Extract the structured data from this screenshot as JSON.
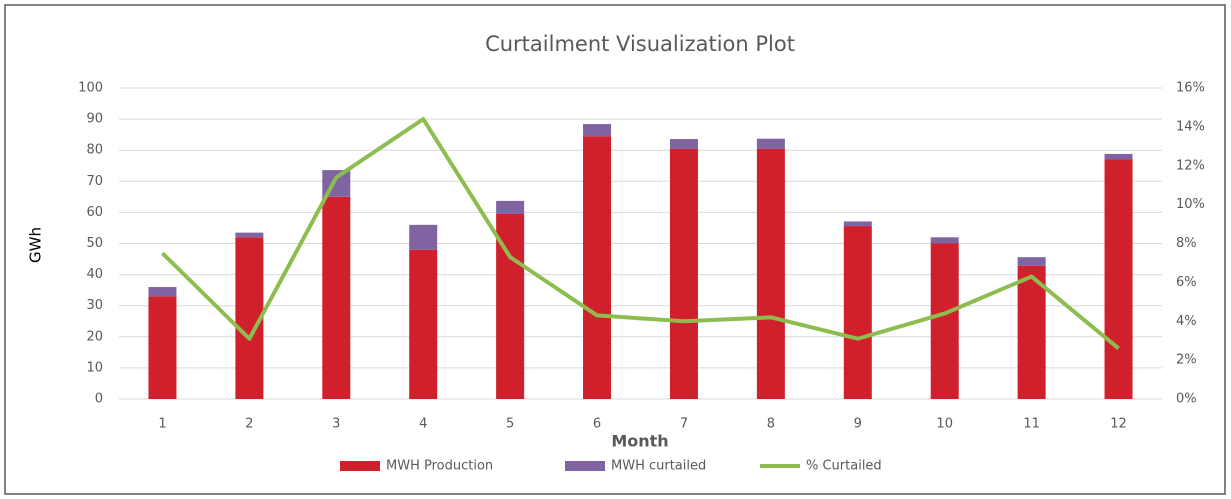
{
  "chart_data": {
    "type": "bar_line",
    "title": "Curtailment Visualization Plot",
    "x_label": "Month",
    "y_label": "GWh",
    "categories": [
      "1",
      "2",
      "3",
      "4",
      "5",
      "6",
      "7",
      "8",
      "9",
      "10",
      "11",
      "12"
    ],
    "series": [
      {
        "name": "MWH Production",
        "color": "#d0202b",
        "kind": "bar",
        "values": [
          33,
          52,
          65,
          48,
          59.5,
          84.5,
          80.4,
          80.4,
          55.6,
          50,
          42.8,
          77
        ]
      },
      {
        "name": "MWH curtailed",
        "color": "#8064a2",
        "kind": "bar",
        "values": [
          3,
          1.5,
          8.6,
          8,
          4.2,
          3.9,
          3.2,
          3.3,
          1.5,
          2,
          2.8,
          1.8
        ]
      },
      {
        "name": "% Curtailed",
        "color": "#8dbd4f",
        "kind": "line",
        "axis": "y2",
        "values": [
          7.5,
          3.1,
          11.4,
          14.4,
          7.3,
          4.3,
          4.0,
          4.2,
          3.1,
          4.4,
          6.3,
          2.6
        ]
      }
    ],
    "ylim": [
      0,
      100
    ],
    "yticks": [
      0,
      10,
      20,
      30,
      40,
      50,
      60,
      70,
      80,
      90,
      100
    ],
    "y2lim": [
      0,
      16
    ],
    "y2ticks": [
      {
        "value": 0,
        "label": "0%"
      },
      {
        "value": 2,
        "label": "2%"
      },
      {
        "value": 4,
        "label": "4%"
      },
      {
        "value": 6,
        "label": "6%"
      },
      {
        "value": 8,
        "label": "8%"
      },
      {
        "value": 10,
        "label": "10%"
      },
      {
        "value": 12,
        "label": "12%"
      },
      {
        "value": 14,
        "label": "14%"
      },
      {
        "value": 16,
        "label": "16%"
      }
    ],
    "grid": true,
    "legend": "bottom"
  }
}
